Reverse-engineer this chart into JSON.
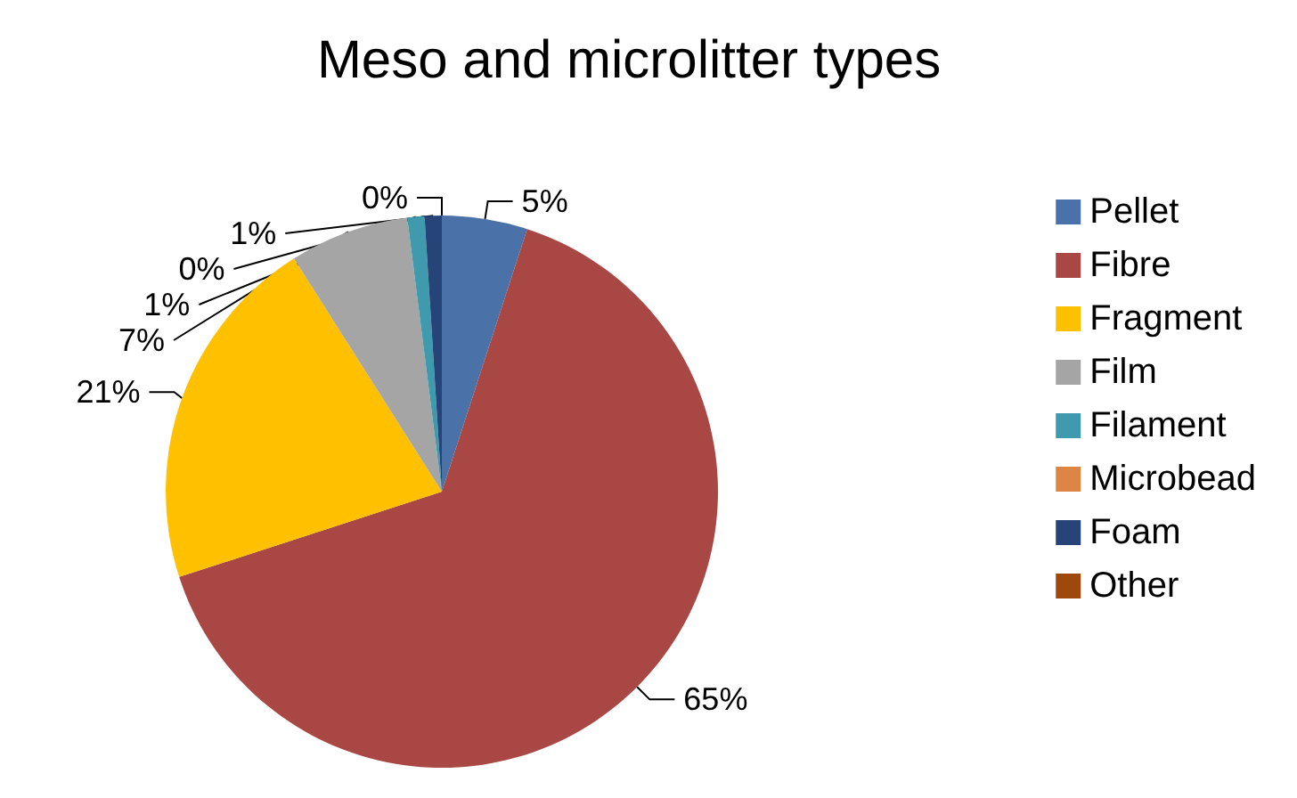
{
  "chart_data": {
    "type": "pie",
    "title": "Meso and microlitter types",
    "categories": [
      "Pellet",
      "Fibre",
      "Fragment",
      "Film",
      "Filament",
      "Microbead",
      "Foam",
      "Other"
    ],
    "values": [
      5,
      65,
      21,
      7,
      1,
      0,
      1,
      0
    ],
    "value_labels": [
      "5%",
      "65%",
      "21%",
      "7%",
      "1%",
      "0%",
      "1%",
      "0%"
    ],
    "colors": [
      "#4a72a8",
      "#a84744",
      "#ffc000",
      "#a5a5a5",
      "#3f9aae",
      "#dc8544",
      "#264478",
      "#9e480e"
    ],
    "legend": "right"
  }
}
